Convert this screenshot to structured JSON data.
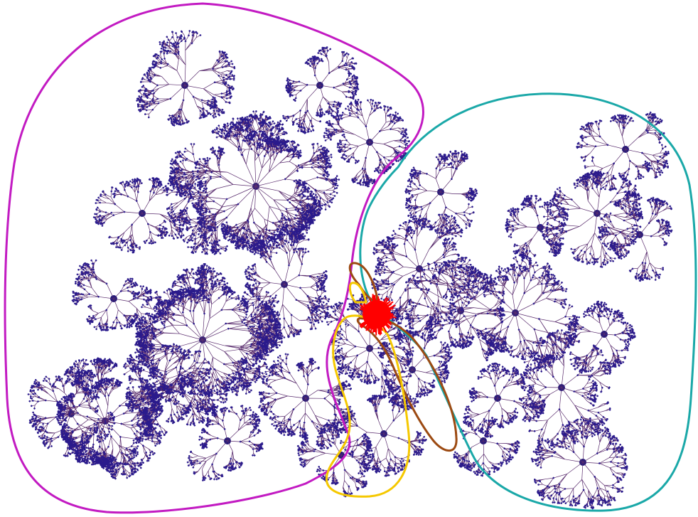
{
  "diagram": {
    "background": "#ffffff",
    "tree_color": "#2a1a8c",
    "edge_color": "#5a2d6e",
    "root_color": "#ff0000",
    "regions": [
      {
        "name": "region-magenta",
        "color": "#c21ac2"
      },
      {
        "name": "region-teal",
        "color": "#1aa8a8"
      },
      {
        "name": "region-brown",
        "color": "#9c4a12"
      },
      {
        "name": "region-yellow",
        "color": "#f5c800"
      }
    ]
  }
}
